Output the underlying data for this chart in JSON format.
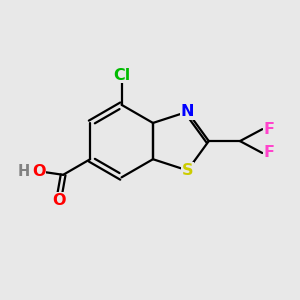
{
  "bg_color": "#e8e8e8",
  "bond_color": "#000000",
  "atom_colors": {
    "Cl": "#00bb00",
    "N": "#0000ff",
    "S": "#cccc00",
    "O": "#ff0000",
    "F": "#ff44cc",
    "H": "#808080",
    "C": "#000000"
  },
  "bond_width": 1.6,
  "figsize": [
    3.0,
    3.0
  ],
  "dpi": 100
}
